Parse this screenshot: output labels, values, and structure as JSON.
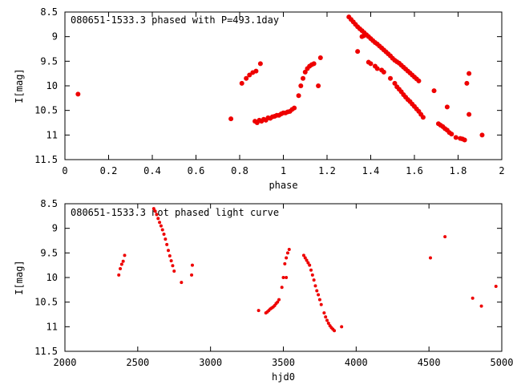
{
  "chart_data": [
    {
      "type": "scatter",
      "title": "080651-1533.3 phased with P=493.1day",
      "xlabel": "phase",
      "ylabel": "I[mag]",
      "xlim": [
        0,
        2
      ],
      "ylim": [
        11.5,
        8.5
      ],
      "y_inverted": true,
      "x_ticks": [
        0,
        0.2,
        0.4,
        0.6,
        0.8,
        1,
        1.2,
        1.4,
        1.6,
        1.8,
        2
      ],
      "x_tick_labels": [
        "0",
        "0.2",
        "0.4",
        "0.6",
        "0.8",
        "1",
        "1.2",
        "1.4",
        "1.6",
        "1.8",
        "2"
      ],
      "y_ticks": [
        8.5,
        9,
        9.5,
        10,
        10.5,
        11,
        11.5
      ],
      "y_tick_labels": [
        "8.5",
        "9",
        "9.5",
        "10",
        "10.5",
        "11",
        "11.5"
      ],
      "color": "#ee0000",
      "series": [
        {
          "points": [
            [
              0.06,
              10.17
            ],
            [
              0.76,
              10.67
            ],
            [
              0.81,
              9.95
            ],
            [
              0.83,
              9.85
            ],
            [
              0.845,
              9.78
            ],
            [
              0.86,
              9.73
            ],
            [
              0.875,
              9.7
            ],
            [
              0.895,
              9.55
            ],
            [
              0.87,
              10.72
            ],
            [
              0.88,
              10.75
            ],
            [
              0.89,
              10.7
            ],
            [
              0.9,
              10.72
            ],
            [
              0.91,
              10.68
            ],
            [
              0.92,
              10.7
            ],
            [
              0.93,
              10.65
            ],
            [
              0.94,
              10.66
            ],
            [
              0.95,
              10.63
            ],
            [
              0.96,
              10.62
            ],
            [
              0.97,
              10.6
            ],
            [
              0.98,
              10.6
            ],
            [
              0.99,
              10.57
            ],
            [
              1.0,
              10.55
            ],
            [
              1.01,
              10.55
            ],
            [
              1.02,
              10.53
            ],
            [
              1.03,
              10.52
            ],
            [
              1.04,
              10.48
            ],
            [
              1.05,
              10.45
            ],
            [
              1.07,
              10.2
            ],
            [
              1.08,
              10.0
            ],
            [
              1.09,
              9.85
            ],
            [
              1.1,
              9.72
            ],
            [
              1.11,
              9.65
            ],
            [
              1.12,
              9.6
            ],
            [
              1.13,
              9.57
            ],
            [
              1.14,
              9.55
            ],
            [
              1.16,
              10.0
            ],
            [
              1.17,
              9.43
            ],
            [
              1.3,
              8.6
            ],
            [
              1.31,
              8.65
            ],
            [
              1.32,
              8.7
            ],
            [
              1.33,
              8.75
            ],
            [
              1.34,
              8.8
            ],
            [
              1.35,
              8.84
            ],
            [
              1.36,
              8.88
            ],
            [
              1.37,
              8.92
            ],
            [
              1.38,
              8.96
            ],
            [
              1.39,
              9.0
            ],
            [
              1.4,
              9.04
            ],
            [
              1.41,
              9.08
            ],
            [
              1.42,
              9.12
            ],
            [
              1.43,
              9.15
            ],
            [
              1.44,
              9.19
            ],
            [
              1.45,
              9.23
            ],
            [
              1.46,
              9.27
            ],
            [
              1.47,
              9.31
            ],
            [
              1.48,
              9.35
            ],
            [
              1.49,
              9.39
            ],
            [
              1.5,
              9.44
            ],
            [
              1.51,
              9.48
            ],
            [
              1.52,
              9.51
            ],
            [
              1.53,
              9.54
            ],
            [
              1.54,
              9.58
            ],
            [
              1.55,
              9.62
            ],
            [
              1.56,
              9.66
            ],
            [
              1.57,
              9.7
            ],
            [
              1.58,
              9.74
            ],
            [
              1.59,
              9.78
            ],
            [
              1.6,
              9.82
            ],
            [
              1.61,
              9.86
            ],
            [
              1.62,
              9.9
            ],
            [
              1.34,
              9.3
            ],
            [
              1.36,
              9.0
            ],
            [
              1.37,
              8.98
            ],
            [
              1.39,
              9.52
            ],
            [
              1.4,
              9.55
            ],
            [
              1.42,
              9.6
            ],
            [
              1.43,
              9.65
            ],
            [
              1.45,
              9.68
            ],
            [
              1.46,
              9.72
            ],
            [
              1.49,
              9.85
            ],
            [
              1.51,
              9.95
            ],
            [
              1.52,
              10.02
            ],
            [
              1.53,
              10.07
            ],
            [
              1.54,
              10.12
            ],
            [
              1.55,
              10.18
            ],
            [
              1.56,
              10.23
            ],
            [
              1.57,
              10.28
            ],
            [
              1.58,
              10.32
            ],
            [
              1.59,
              10.37
            ],
            [
              1.6,
              10.42
            ],
            [
              1.61,
              10.47
            ],
            [
              1.62,
              10.52
            ],
            [
              1.63,
              10.58
            ],
            [
              1.64,
              10.64
            ],
            [
              1.69,
              10.1
            ],
            [
              1.71,
              10.77
            ],
            [
              1.72,
              10.8
            ],
            [
              1.73,
              10.83
            ],
            [
              1.74,
              10.87
            ],
            [
              1.75,
              10.9
            ],
            [
              1.76,
              10.95
            ],
            [
              1.77,
              10.98
            ],
            [
              1.75,
              10.43
            ],
            [
              1.79,
              11.05
            ],
            [
              1.81,
              11.07
            ],
            [
              1.82,
              11.08
            ],
            [
              1.83,
              11.1
            ],
            [
              1.84,
              9.95
            ],
            [
              1.85,
              9.75
            ],
            [
              1.85,
              10.58
            ],
            [
              1.91,
              11.0
            ]
          ]
        }
      ]
    },
    {
      "type": "scatter",
      "title": "080651-1533.3 not phased light curve",
      "xlabel": "hjd0",
      "ylabel": "I[mag]",
      "xlim": [
        2000,
        5000
      ],
      "ylim": [
        11.5,
        8.5
      ],
      "y_inverted": true,
      "x_ticks": [
        2000,
        2500,
        3000,
        3500,
        4000,
        4500,
        5000
      ],
      "x_tick_labels": [
        "2000",
        "2500",
        "3000",
        "3500",
        "4000",
        "4500",
        "5000"
      ],
      "y_ticks": [
        8.5,
        9,
        9.5,
        10,
        10.5,
        11,
        11.5
      ],
      "y_tick_labels": [
        "8.5",
        "9",
        "9.5",
        "10",
        "10.5",
        "11",
        "11.5"
      ],
      "color": "#ee0000",
      "series": [
        {
          "points": [
            [
              2370,
              9.95
            ],
            [
              2380,
              9.82
            ],
            [
              2390,
              9.73
            ],
            [
              2400,
              9.67
            ],
            [
              2410,
              9.55
            ],
            [
              2610,
              8.6
            ],
            [
              2620,
              8.65
            ],
            [
              2630,
              8.72
            ],
            [
              2640,
              8.8
            ],
            [
              2650,
              8.88
            ],
            [
              2660,
              8.95
            ],
            [
              2670,
              9.03
            ],
            [
              2680,
              9.12
            ],
            [
              2690,
              9.22
            ],
            [
              2700,
              9.33
            ],
            [
              2710,
              9.45
            ],
            [
              2720,
              9.56
            ],
            [
              2730,
              9.66
            ],
            [
              2740,
              9.76
            ],
            [
              2750,
              9.87
            ],
            [
              2800,
              10.1
            ],
            [
              2870,
              9.95
            ],
            [
              2875,
              9.75
            ],
            [
              3330,
              10.67
            ],
            [
              3380,
              10.72
            ],
            [
              3390,
              10.7
            ],
            [
              3400,
              10.67
            ],
            [
              3410,
              10.64
            ],
            [
              3420,
              10.62
            ],
            [
              3430,
              10.6
            ],
            [
              3440,
              10.57
            ],
            [
              3450,
              10.53
            ],
            [
              3460,
              10.5
            ],
            [
              3470,
              10.45
            ],
            [
              3490,
              10.2
            ],
            [
              3500,
              10.0
            ],
            [
              3510,
              9.72
            ],
            [
              3520,
              9.6
            ],
            [
              3530,
              9.5
            ],
            [
              3540,
              9.43
            ],
            [
              3520,
              10.0
            ],
            [
              3640,
              9.55
            ],
            [
              3650,
              9.6
            ],
            [
              3660,
              9.65
            ],
            [
              3670,
              9.7
            ],
            [
              3680,
              9.75
            ],
            [
              3690,
              9.85
            ],
            [
              3700,
              9.95
            ],
            [
              3710,
              10.05
            ],
            [
              3720,
              10.17
            ],
            [
              3730,
              10.27
            ],
            [
              3740,
              10.35
            ],
            [
              3750,
              10.45
            ],
            [
              3760,
              10.55
            ],
            [
              3780,
              10.72
            ],
            [
              3790,
              10.8
            ],
            [
              3800,
              10.87
            ],
            [
              3810,
              10.93
            ],
            [
              3820,
              10.98
            ],
            [
              3830,
              11.02
            ],
            [
              3840,
              11.05
            ],
            [
              3850,
              11.08
            ],
            [
              3900,
              11.0
            ],
            [
              4510,
              9.6
            ],
            [
              4610,
              9.17
            ],
            [
              4800,
              10.42
            ],
            [
              4860,
              10.58
            ],
            [
              4960,
              10.18
            ]
          ]
        }
      ]
    }
  ]
}
